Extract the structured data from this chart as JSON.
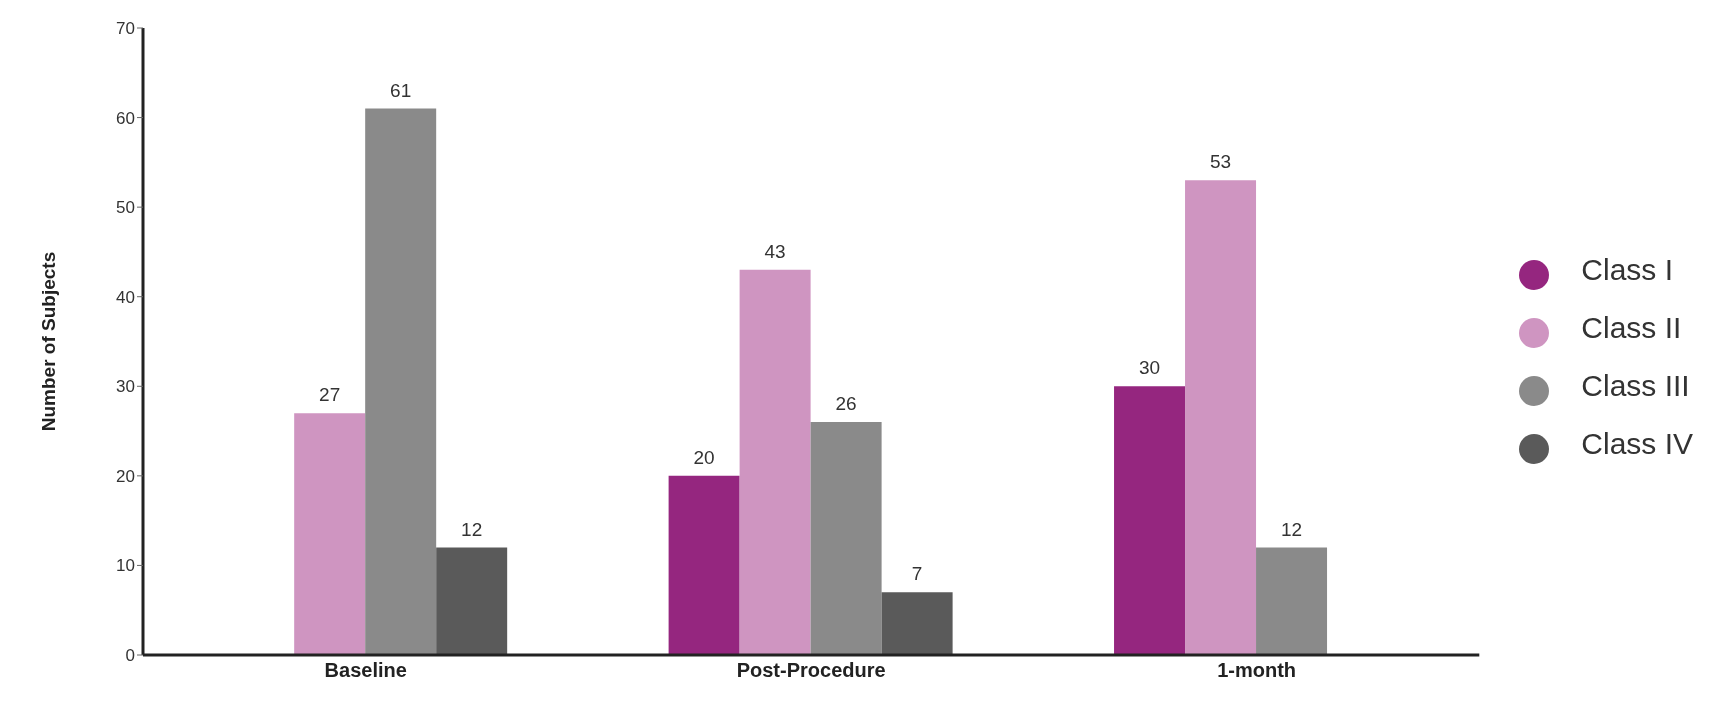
{
  "chart_data": {
    "type": "bar",
    "ylabel": "Number of Subjects",
    "categories": [
      "Baseline",
      "Post-Procedure",
      "1-month"
    ],
    "series": [
      {
        "name": "Class I",
        "color": "#95267f",
        "values": [
          null,
          20,
          30
        ]
      },
      {
        "name": "Class II",
        "color": "#cf95c1",
        "values": [
          27,
          43,
          53
        ]
      },
      {
        "name": "Class III",
        "color": "#8a8a8a",
        "values": [
          61,
          26,
          12
        ]
      },
      {
        "name": "Class IV",
        "color": "#5a5a5a",
        "values": [
          12,
          7,
          null
        ]
      }
    ],
    "ylim": [
      0,
      70
    ],
    "yticks": [
      0,
      10,
      20,
      30,
      40,
      50,
      60,
      70
    ],
    "grid": false,
    "legend": "right",
    "data_labels": true
  }
}
